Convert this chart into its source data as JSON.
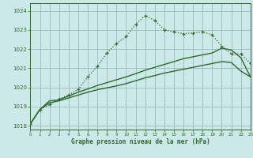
{
  "title": "Graphe pression niveau de la mer (hPa)",
  "bg_color": "#cce8e8",
  "grid_color": "#99bbbb",
  "line_color": "#2d6a2d",
  "xlim": [
    0,
    23
  ],
  "ylim": [
    1017.8,
    1024.4
  ],
  "yticks": [
    1018,
    1019,
    1020,
    1021,
    1022,
    1023,
    1024
  ],
  "xticks": [
    0,
    1,
    2,
    3,
    4,
    5,
    6,
    7,
    8,
    9,
    10,
    11,
    12,
    13,
    14,
    15,
    16,
    17,
    18,
    19,
    20,
    21,
    22,
    23
  ],
  "series_dotted_x": [
    0,
    1,
    2,
    3,
    4,
    5,
    6,
    7,
    8,
    9,
    10,
    11,
    12,
    13,
    14,
    15,
    16,
    17,
    18,
    19,
    20,
    21,
    22,
    23
  ],
  "series_dotted_y": [
    1018.1,
    1018.85,
    1019.1,
    1019.4,
    1019.6,
    1019.9,
    1020.55,
    1021.1,
    1021.8,
    1022.3,
    1022.65,
    1023.3,
    1023.75,
    1023.5,
    1023.0,
    1022.9,
    1022.8,
    1022.85,
    1022.9,
    1022.75,
    1022.15,
    1021.75,
    1021.75,
    1021.25
  ],
  "series_line1_x": [
    0,
    1,
    2,
    3,
    4,
    5,
    6,
    7,
    8,
    9,
    10,
    11,
    12,
    13,
    14,
    15,
    16,
    17,
    18,
    19,
    20,
    21,
    22,
    23
  ],
  "series_line1_y": [
    1018.1,
    1018.85,
    1019.2,
    1019.3,
    1019.45,
    1019.6,
    1019.75,
    1019.88,
    1019.98,
    1020.08,
    1020.2,
    1020.35,
    1020.5,
    1020.62,
    1020.75,
    1020.85,
    1020.95,
    1021.05,
    1021.15,
    1021.25,
    1021.35,
    1021.3,
    1020.85,
    1020.55
  ],
  "series_line2_x": [
    0,
    1,
    2,
    3,
    4,
    5,
    6,
    7,
    8,
    9,
    10,
    11,
    12,
    13,
    14,
    15,
    16,
    17,
    18,
    19,
    20,
    21,
    22,
    23
  ],
  "series_line2_y": [
    1018.1,
    1018.85,
    1019.3,
    1019.35,
    1019.55,
    1019.75,
    1019.92,
    1020.1,
    1020.25,
    1020.4,
    1020.55,
    1020.72,
    1020.9,
    1021.05,
    1021.2,
    1021.35,
    1021.5,
    1021.6,
    1021.7,
    1021.8,
    1022.05,
    1021.95,
    1021.55,
    1020.55
  ]
}
